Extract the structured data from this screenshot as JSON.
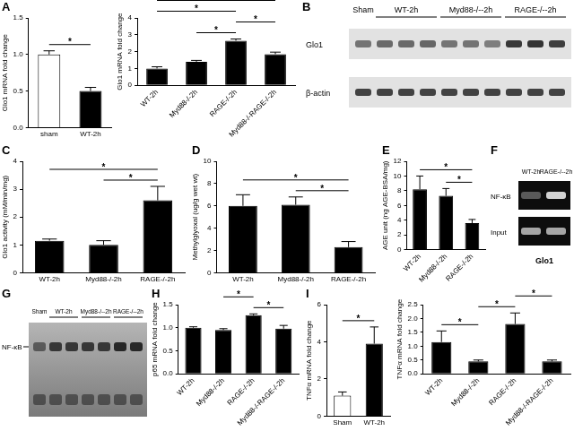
{
  "chart_data": [
    {
      "title": "A",
      "type": "bar",
      "categories": [
        "sham",
        "WT-2h"
      ],
      "values": [
        1.0,
        0.5
      ],
      "errors": [
        0.05,
        0.05
      ],
      "colors": [
        "#ffffff",
        "#000000"
      ],
      "y_label": "Glo1 mRNA fold change",
      "ylim": [
        0,
        1.5
      ],
      "yticks": [
        {
          "value": 0,
          "label": "0.0"
        },
        0.5,
        {
          "value": 1,
          "label": "1.0"
        },
        1.5
      ],
      "grid": false,
      "significance": [
        {
          "from": 0,
          "to": 1,
          "label": "*"
        }
      ]
    },
    {
      "type": "bar",
      "categories": [
        "WT-2h",
        "Myd88-/-2h",
        "RAGE-/-2h",
        "Myd88-/-RAGE-/-2h"
      ],
      "values": [
        1.0,
        1.4,
        2.65,
        1.85
      ],
      "errors": [
        0.1,
        0.08,
        0.1,
        0.12
      ],
      "colors": [
        "#000000",
        "#000000",
        "#000000",
        "#000000"
      ],
      "y_label": "Glo1 mRNA fold change",
      "ylim": [
        0,
        4
      ],
      "yticks": [
        0,
        1,
        2,
        3,
        4
      ],
      "grid": false,
      "significance": [
        {
          "from": 1,
          "to": 2,
          "label": "*"
        },
        {
          "from": 2,
          "to": 3,
          "label": "*"
        },
        {
          "from": 0,
          "to": 2,
          "label": "*"
        },
        {
          "from": 0,
          "to": 3,
          "label": "*"
        }
      ]
    },
    {
      "title": "C",
      "type": "bar",
      "categories": [
        "WT-2h",
        "Myd88-/-2h",
        "RAGE-/-2h"
      ],
      "values": [
        1.15,
        1.0,
        2.6
      ],
      "errors": [
        0.06,
        0.15,
        0.5
      ],
      "colors": [
        "#000000",
        "#000000",
        "#000000"
      ],
      "y_label": "Glo1 activity (mM/min/mg)",
      "ylim": [
        0,
        4
      ],
      "yticks": [
        0,
        1,
        2,
        3,
        4
      ],
      "grid": false,
      "significance": [
        {
          "from": 1,
          "to": 2,
          "label": "*"
        },
        {
          "from": 0,
          "to": 2,
          "label": "*"
        }
      ]
    },
    {
      "title": "D",
      "type": "bar",
      "categories": [
        "WT-2h",
        "Myd88-/-2h",
        "RAGE-/-2h"
      ],
      "values": [
        6.0,
        6.1,
        2.3
      ],
      "errors": [
        1.0,
        0.7,
        0.5
      ],
      "colors": [
        "#000000",
        "#000000",
        "#000000"
      ],
      "y_label": "Methylglyoxal (ug/g wet wt)",
      "ylim": [
        0,
        10
      ],
      "yticks": [
        0,
        2,
        4,
        6,
        8,
        10
      ],
      "grid": false,
      "significance": [
        {
          "from": 1,
          "to": 2,
          "label": "*"
        },
        {
          "from": 0,
          "to": 2,
          "label": "*"
        }
      ]
    },
    {
      "title": "E",
      "type": "bar",
      "categories": [
        "WT-2h",
        "Myd88-/-2h",
        "RAGE-/-2h"
      ],
      "values": [
        8.2,
        7.3,
        3.6
      ],
      "errors": [
        1.8,
        1.0,
        0.5
      ],
      "colors": [
        "#000000",
        "#000000",
        "#000000"
      ],
      "y_label": "AGE unit (ng AGE-BSA/mg)",
      "ylim": [
        0,
        12
      ],
      "yticks": [
        0,
        2,
        4,
        6,
        8,
        10,
        12
      ],
      "grid": false,
      "significance": [
        {
          "from": 1,
          "to": 2,
          "label": "*"
        },
        {
          "from": 0,
          "to": 2,
          "label": "*"
        }
      ]
    },
    {
      "title": "H",
      "type": "bar",
      "categories": [
        "WT-2h",
        "Myd88-/-2h",
        "RAGE-/-2h",
        "Myd88-/-RAGE-/-2h"
      ],
      "values": [
        1.0,
        0.95,
        1.27,
        0.98
      ],
      "errors": [
        0.02,
        0.03,
        0.03,
        0.07
      ],
      "colors": [
        "#000000",
        "#000000",
        "#000000",
        "#000000"
      ],
      "y_label": "p65 mRNA fold change",
      "ylim": [
        0,
        1.5
      ],
      "yticks": [
        {
          "value": 0,
          "label": "0.0"
        },
        0.5,
        {
          "value": 1,
          "label": "1.0"
        },
        1.5
      ],
      "grid": false,
      "significance": [
        {
          "from": 2,
          "to": 3,
          "label": "*"
        },
        {
          "from": 1,
          "to": 2,
          "label": "*"
        },
        {
          "from": 0,
          "to": 2,
          "label": "*"
        }
      ]
    },
    {
      "title": "I",
      "type": "bar",
      "categories": [
        "Sham",
        "WT-2h"
      ],
      "values": [
        1.1,
        3.9
      ],
      "errors": [
        0.2,
        0.9
      ],
      "colors": [
        "#ffffff",
        "#000000"
      ],
      "y_label": "TNFα mRNA fold change",
      "ylim": [
        0,
        6
      ],
      "yticks": [
        0,
        2,
        4,
        6
      ],
      "grid": false,
      "significance": [
        {
          "from": 0,
          "to": 1,
          "label": "*"
        }
      ]
    },
    {
      "type": "bar",
      "categories": [
        "WT-2h",
        "Myd88-/-2h",
        "RAGE-/-2h",
        "Myd88-/-RAGE-/-2h"
      ],
      "values": [
        1.15,
        0.45,
        1.8,
        0.45
      ],
      "errors": [
        0.4,
        0.05,
        0.4,
        0.05
      ],
      "colors": [
        "#000000",
        "#000000",
        "#000000",
        "#000000"
      ],
      "y_label": "TNFα mRNA fold change",
      "ylim": [
        0,
        2.5
      ],
      "yticks": [
        {
          "value": 0,
          "label": "0.0"
        },
        0.5,
        {
          "value": 1,
          "label": "1.0"
        },
        1.5,
        {
          "value": 2,
          "label": "2.0"
        },
        2.5
      ],
      "grid": false,
      "significance": [
        {
          "from": 0,
          "to": 1,
          "label": "*"
        },
        {
          "from": 1,
          "to": 2,
          "label": "*"
        },
        {
          "from": 2,
          "to": 3,
          "label": "*"
        }
      ]
    }
  ],
  "blots": [
    {
      "title": "B",
      "lanes": [
        "Sham",
        "WT-2h",
        "Myd88-/--2h",
        "RAGE-/--2h"
      ],
      "rows": [
        "Glo1",
        "β-actin"
      ]
    },
    {
      "title": "F",
      "lanes": [
        "WT-2h",
        "RAGE-/--2h"
      ],
      "rows": [
        "NF-κB",
        "Input"
      ],
      "caption": "Glo1"
    },
    {
      "title": "G",
      "lanes": [
        "Sham",
        "WT-2h",
        "Myd88-/--2h",
        "RAGE-/--2h"
      ],
      "rows": [
        "NF-κB"
      ]
    }
  ]
}
